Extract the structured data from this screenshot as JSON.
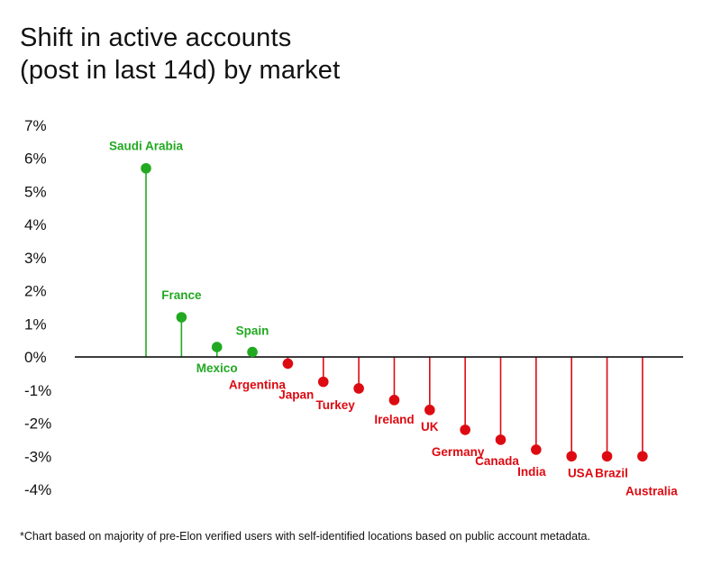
{
  "title": "Shift in active accounts",
  "subtitle": "(post in last 14d) by market",
  "footnote": "*Chart based on majority of pre-Elon verified users with self-identified locations based on public account metadata.",
  "colors": {
    "positive": "#22a922",
    "negative": "#dd0a12",
    "axis": "#111111"
  },
  "chart_data": {
    "type": "lollipop",
    "title": "Shift in active accounts",
    "subtitle": "(post in last 14d) by market",
    "ylim": [
      -4,
      7
    ],
    "yticks": [
      "7%",
      "6%",
      "5%",
      "4%",
      "3%",
      "2%",
      "1%",
      "0%",
      "-1%",
      "-2%",
      "-3%",
      "-4%"
    ],
    "categories": [
      "Saudi Arabia",
      "France",
      "Mexico",
      "Spain",
      "Argentina",
      "Japan",
      "Turkey",
      "Ireland",
      "UK",
      "Germany",
      "Canada",
      "India",
      "USA",
      "Brazil",
      "Australia"
    ],
    "values": [
      5.7,
      1.2,
      0.3,
      0.15,
      -0.2,
      -0.75,
      -0.95,
      -1.3,
      -1.6,
      -2.2,
      -2.5,
      -2.8,
      -3.0,
      -3.0,
      -3.0
    ],
    "grid": false
  }
}
